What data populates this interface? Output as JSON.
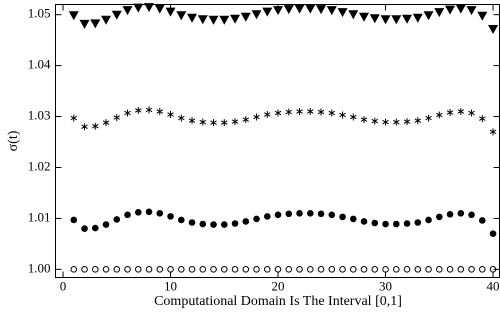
{
  "chart_data": {
    "type": "scatter",
    "xlabel": "Computational Domain Is The Interval [0,1]",
    "ylabel": "σ(t)",
    "x": [
      1,
      2,
      3,
      4,
      5,
      6,
      7,
      8,
      9,
      10,
      11,
      12,
      13,
      14,
      15,
      16,
      17,
      18,
      19,
      20,
      21,
      22,
      23,
      24,
      25,
      26,
      27,
      28,
      29,
      30,
      31,
      32,
      33,
      34,
      35,
      36,
      37,
      38,
      39,
      40
    ],
    "series": [
      {
        "marker": "triangle-down",
        "color": "#000000",
        "values": [
          1.0497,
          1.048,
          1.0481,
          1.0488,
          1.0498,
          1.0507,
          1.0512,
          1.0513,
          1.051,
          1.0504,
          1.0497,
          1.0492,
          1.0489,
          1.0488,
          1.0488,
          1.049,
          1.0494,
          1.0499,
          1.0504,
          1.0507,
          1.0509,
          1.051,
          1.051,
          1.0509,
          1.0507,
          1.0503,
          1.0499,
          1.0494,
          1.0491,
          1.0489,
          1.0489,
          1.049,
          1.0492,
          1.0497,
          1.0503,
          1.0508,
          1.051,
          1.0507,
          1.0496,
          1.047
        ]
      },
      {
        "marker": "star",
        "color": "#000000",
        "values": [
          1.0297,
          1.028,
          1.0281,
          1.0288,
          1.0298,
          1.0307,
          1.0312,
          1.0313,
          1.031,
          1.0304,
          1.0297,
          1.0292,
          1.0289,
          1.0288,
          1.0288,
          1.029,
          1.0294,
          1.0299,
          1.0304,
          1.0307,
          1.0309,
          1.031,
          1.031,
          1.0309,
          1.0307,
          1.0303,
          1.0299,
          1.0294,
          1.0291,
          1.0289,
          1.0289,
          1.029,
          1.0292,
          1.0297,
          1.0303,
          1.0308,
          1.031,
          1.0307,
          1.0296,
          1.027
        ]
      },
      {
        "marker": "circle-filled",
        "color": "#000000",
        "values": [
          1.0097,
          1.008,
          1.0081,
          1.0088,
          1.0098,
          1.0107,
          1.0112,
          1.0113,
          1.011,
          1.0104,
          1.0097,
          1.0092,
          1.0089,
          1.0088,
          1.0088,
          1.009,
          1.0094,
          1.0099,
          1.0104,
          1.0107,
          1.0109,
          1.011,
          1.011,
          1.0109,
          1.0107,
          1.0103,
          1.0099,
          1.0094,
          1.0091,
          1.0089,
          1.0089,
          1.009,
          1.0092,
          1.0097,
          1.0103,
          1.0108,
          1.011,
          1.0107,
          1.0096,
          1.007
        ]
      },
      {
        "marker": "circle-open",
        "color": "#000000",
        "values": [
          1,
          1,
          1,
          1,
          1,
          1,
          1,
          1,
          1,
          1,
          1,
          1,
          1,
          1,
          1,
          1,
          1,
          1,
          1,
          1,
          1,
          1,
          1,
          1,
          1,
          1,
          1,
          1,
          1,
          1,
          1,
          1,
          1,
          1,
          1,
          1,
          1,
          1,
          1,
          1
        ]
      }
    ],
    "xlim": [
      -0.7,
      40.6
    ],
    "ylim": [
      0.9984,
      1.052
    ],
    "xticks": [
      0,
      10,
      20,
      30,
      40
    ],
    "yticks": [
      {
        "value": 1,
        "label": "1.00"
      },
      {
        "value": 1.01,
        "label": "1.01"
      },
      {
        "value": 1.02,
        "label": "1.02"
      },
      {
        "value": 1.03,
        "label": "1.03"
      },
      {
        "value": 1.04,
        "label": "1.04"
      },
      {
        "value": 1.05,
        "label": "1.05"
      }
    ]
  }
}
